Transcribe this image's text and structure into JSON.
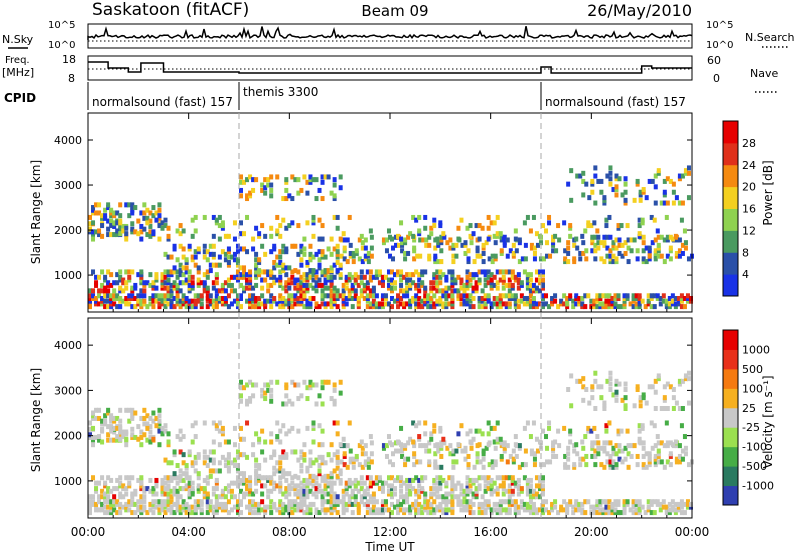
{
  "header": {
    "station": "Saskatoon (fitACF)",
    "beam": "Beam 09",
    "date": "26/May/2010"
  },
  "noise_panel": {
    "left_label": "N.Sky",
    "right_label": "N.Search",
    "left_ticks": [
      "10^5",
      "10^0"
    ],
    "right_ticks": [
      "10^5",
      "10^0"
    ]
  },
  "freq_panel": {
    "left_label_1": "Freq.",
    "left_label_2": "[MHz]",
    "left_ticks": [
      "18",
      "8"
    ],
    "right_label": "Nave",
    "right_ticks": [
      "60",
      "0"
    ]
  },
  "cpid": {
    "label": "CPID",
    "segments": [
      {
        "text": "normalsound (fast) 157",
        "start_h": 0,
        "end_h": 6
      },
      {
        "text": "themis 3300",
        "start_h": 6,
        "end_h": 18
      },
      {
        "text": "normalsound (fast) 157",
        "start_h": 18,
        "end_h": 24
      }
    ]
  },
  "chart_data": [
    {
      "type": "heatmap",
      "quantity": "Power",
      "ylabel": "Slant Range [km]",
      "yticks": [
        1000,
        2000,
        3000,
        4000
      ],
      "ylim": [
        180,
        4600
      ],
      "xlim": [
        0,
        24
      ],
      "colorbar": {
        "label": "Power [dB]",
        "levels": [
          "4",
          "8",
          "12",
          "16",
          "20",
          "24",
          "28"
        ],
        "colors": [
          "#1932e6",
          "#2a50a8",
          "#4a9a60",
          "#8fd250",
          "#f4d020",
          "#f58a10",
          "#e0301a",
          "#e60000"
        ]
      }
    },
    {
      "type": "heatmap",
      "quantity": "Velocity",
      "ylabel": "Slant Range [km]",
      "yticks": [
        1000,
        2000,
        3000,
        4000
      ],
      "ylim": [
        180,
        4600
      ],
      "xlim": [
        0,
        24
      ],
      "xticks": [
        "00:00",
        "04:00",
        "08:00",
        "12:00",
        "16:00",
        "20:00",
        "00:00"
      ],
      "xlabel": "Time UT",
      "colorbar": {
        "label": "Velocity [m s⁻¹]",
        "levels": [
          "1000",
          "500",
          "100",
          "25",
          "-25",
          "-100",
          "-500",
          "-1000"
        ],
        "colors": [
          "#2f3fb0",
          "#2a7a60",
          "#46ad46",
          "#9be050",
          "#c8c8c8",
          "#f6b020",
          "#f57a10",
          "#e8301a",
          "#e60000"
        ]
      }
    }
  ]
}
